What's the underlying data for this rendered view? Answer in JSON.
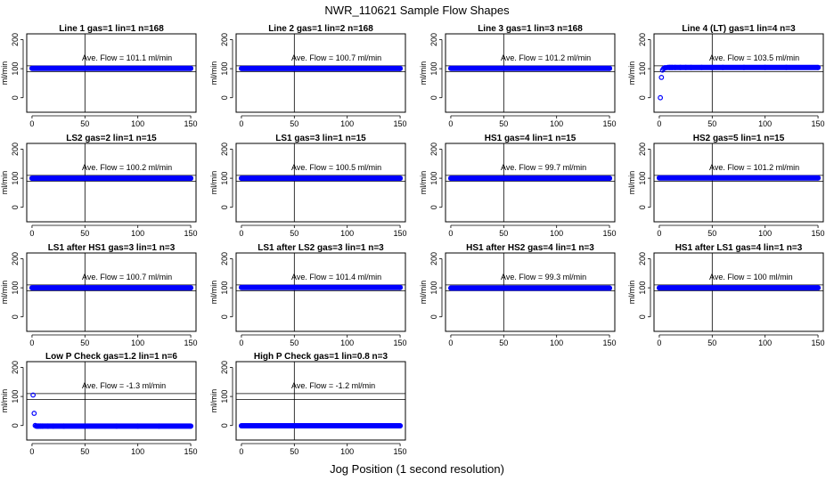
{
  "figure": {
    "title": "NWR_110621  Sample Flow Shapes",
    "xlabel": "Jog Position (1 second resolution)",
    "ylabel": "ml/min",
    "flow_prefix": "Ave. Flow = ",
    "flow_unit": "ml/min",
    "point_color": "#0000ff",
    "x_ticks": [
      0,
      50,
      100,
      150
    ],
    "y_ticks": [
      0,
      100,
      200
    ],
    "ylim": [
      -50,
      220
    ],
    "xlim": [
      -5,
      155
    ],
    "vline_x": 50,
    "hlines_y": [
      90,
      110
    ]
  },
  "chart_data": [
    {
      "type": "scatter",
      "title": "Line 1 gas=1 lin=1 n=168",
      "ave_flow": "101.1",
      "x": [
        0,
        150
      ],
      "y": [
        101,
        101
      ]
    },
    {
      "type": "scatter",
      "title": "Line 2 gas=1 lin=2 n=168",
      "ave_flow": "100.7",
      "x": [
        0,
        150
      ],
      "y": [
        100.7,
        100.7
      ]
    },
    {
      "type": "scatter",
      "title": "Line 3 gas=1 lin=3 n=168",
      "ave_flow": "101.2",
      "x": [
        0,
        150
      ],
      "y": [
        101,
        101
      ]
    },
    {
      "type": "scatter",
      "title": "Line 4 (LT) gas=1 lin=4 n=3",
      "ave_flow": "103.5",
      "x": [
        1,
        2,
        3,
        4,
        5,
        6,
        8,
        10,
        12,
        15,
        20,
        25,
        30,
        40,
        50,
        60,
        80,
        100,
        120,
        150
      ],
      "y": [
        0,
        70,
        95,
        100,
        103,
        103,
        104,
        104,
        104,
        104,
        104,
        104,
        104,
        104,
        104,
        104,
        104,
        104,
        104,
        104
      ]
    },
    {
      "type": "scatter",
      "title": "LS2 gas=2 lin=1 n=15",
      "ave_flow": "100.2",
      "x": [
        0,
        150
      ],
      "y": [
        100,
        100
      ]
    },
    {
      "type": "scatter",
      "title": "LS1 gas=3 lin=1 n=15",
      "ave_flow": "100.5",
      "x": [
        0,
        150
      ],
      "y": [
        100,
        100
      ]
    },
    {
      "type": "scatter",
      "title": "HS1 gas=4 lin=1 n=15",
      "ave_flow": "99.7",
      "x": [
        0,
        150
      ],
      "y": [
        100,
        100
      ]
    },
    {
      "type": "scatter",
      "title": "HS2 gas=5 lin=1 n=15",
      "ave_flow": "101.2",
      "x": [
        0,
        150
      ],
      "y": [
        101,
        101
      ]
    },
    {
      "type": "scatter",
      "title": "LS1 after HS1 gas=3 lin=1 n=3",
      "ave_flow": "100.7",
      "x": [
        0,
        150
      ],
      "y": [
        100,
        100
      ]
    },
    {
      "type": "scatter",
      "title": "LS1 after LS2 gas=3 lin=1 n=3",
      "ave_flow": "101.4",
      "x": [
        0,
        150
      ],
      "y": [
        101,
        101
      ]
    },
    {
      "type": "scatter",
      "title": "HS1 after HS2 gas=4 lin=1 n=3",
      "ave_flow": "99.3",
      "x": [
        0,
        150
      ],
      "y": [
        99,
        99
      ]
    },
    {
      "type": "scatter",
      "title": "HS1 after LS1 gas=4 lin=1 n=3",
      "ave_flow": "100",
      "x": [
        0,
        150
      ],
      "y": [
        100,
        100
      ]
    },
    {
      "type": "scatter",
      "title": "Low P Check gas=1.2 lin=1 n=6",
      "ave_flow": "-1.3",
      "x": [
        1,
        2,
        3,
        4,
        5,
        6,
        8,
        10,
        15,
        20,
        30,
        50,
        80,
        100,
        120,
        150
      ],
      "y": [
        105,
        42,
        0,
        -2,
        -2,
        -2,
        -2,
        -2,
        -2,
        -2,
        -2,
        -2,
        -2,
        -2,
        -2,
        -2
      ]
    },
    {
      "type": "scatter",
      "title": "High P Check gas=1 lin=0.8 n=3",
      "ave_flow": "-1.2",
      "x": [
        0,
        150
      ],
      "y": [
        -1,
        -1
      ]
    }
  ]
}
